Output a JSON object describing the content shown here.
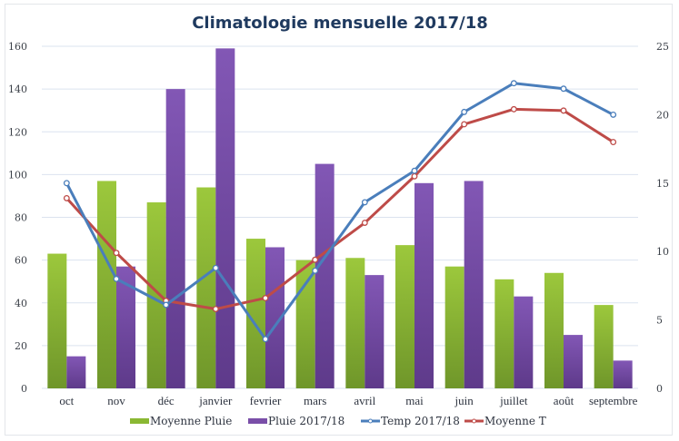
{
  "chart_data": {
    "type": "bar",
    "title": "Climatologie mensuelle 2017/18",
    "xlabel": "",
    "ylabel": "",
    "y2label": "",
    "categories": [
      "oct",
      "nov",
      "déc",
      "janvier",
      "fevrier",
      "mars",
      "avril",
      "mai",
      "juin",
      "juillet",
      "août",
      "septembre"
    ],
    "ylim": [
      0,
      160
    ],
    "yticks": [
      0,
      20,
      40,
      60,
      80,
      100,
      120,
      140,
      160
    ],
    "y2lim": [
      0,
      25
    ],
    "y2ticks": [
      0,
      5,
      10,
      15,
      20,
      25
    ],
    "grid": true,
    "legend_position": "bottom",
    "series": [
      {
        "name": "Moyenne Pluie",
        "type": "bar",
        "axis": "left",
        "color": "#8ab833",
        "values": [
          63,
          97,
          87,
          94,
          70,
          60,
          61,
          67,
          57,
          51,
          54,
          39
        ]
      },
      {
        "name": "Pluie 2017/18",
        "type": "bar",
        "axis": "left",
        "color": "#7a4fa8",
        "values": [
          15,
          57,
          140,
          159,
          66,
          105,
          53,
          96,
          97,
          43,
          25,
          13
        ]
      },
      {
        "name": "Temp 2017/18",
        "type": "line",
        "axis": "right",
        "color": "#4a7ebb",
        "values": [
          15.0,
          8.0,
          6.1,
          8.8,
          3.6,
          8.6,
          13.6,
          15.9,
          20.2,
          22.3,
          21.9,
          20.0
        ]
      },
      {
        "name": "Moyenne T",
        "type": "line",
        "axis": "right",
        "color": "#be4b48",
        "values": [
          13.9,
          9.9,
          6.4,
          5.8,
          6.6,
          9.4,
          12.1,
          15.5,
          19.3,
          20.4,
          20.3,
          18.0
        ]
      }
    ]
  }
}
